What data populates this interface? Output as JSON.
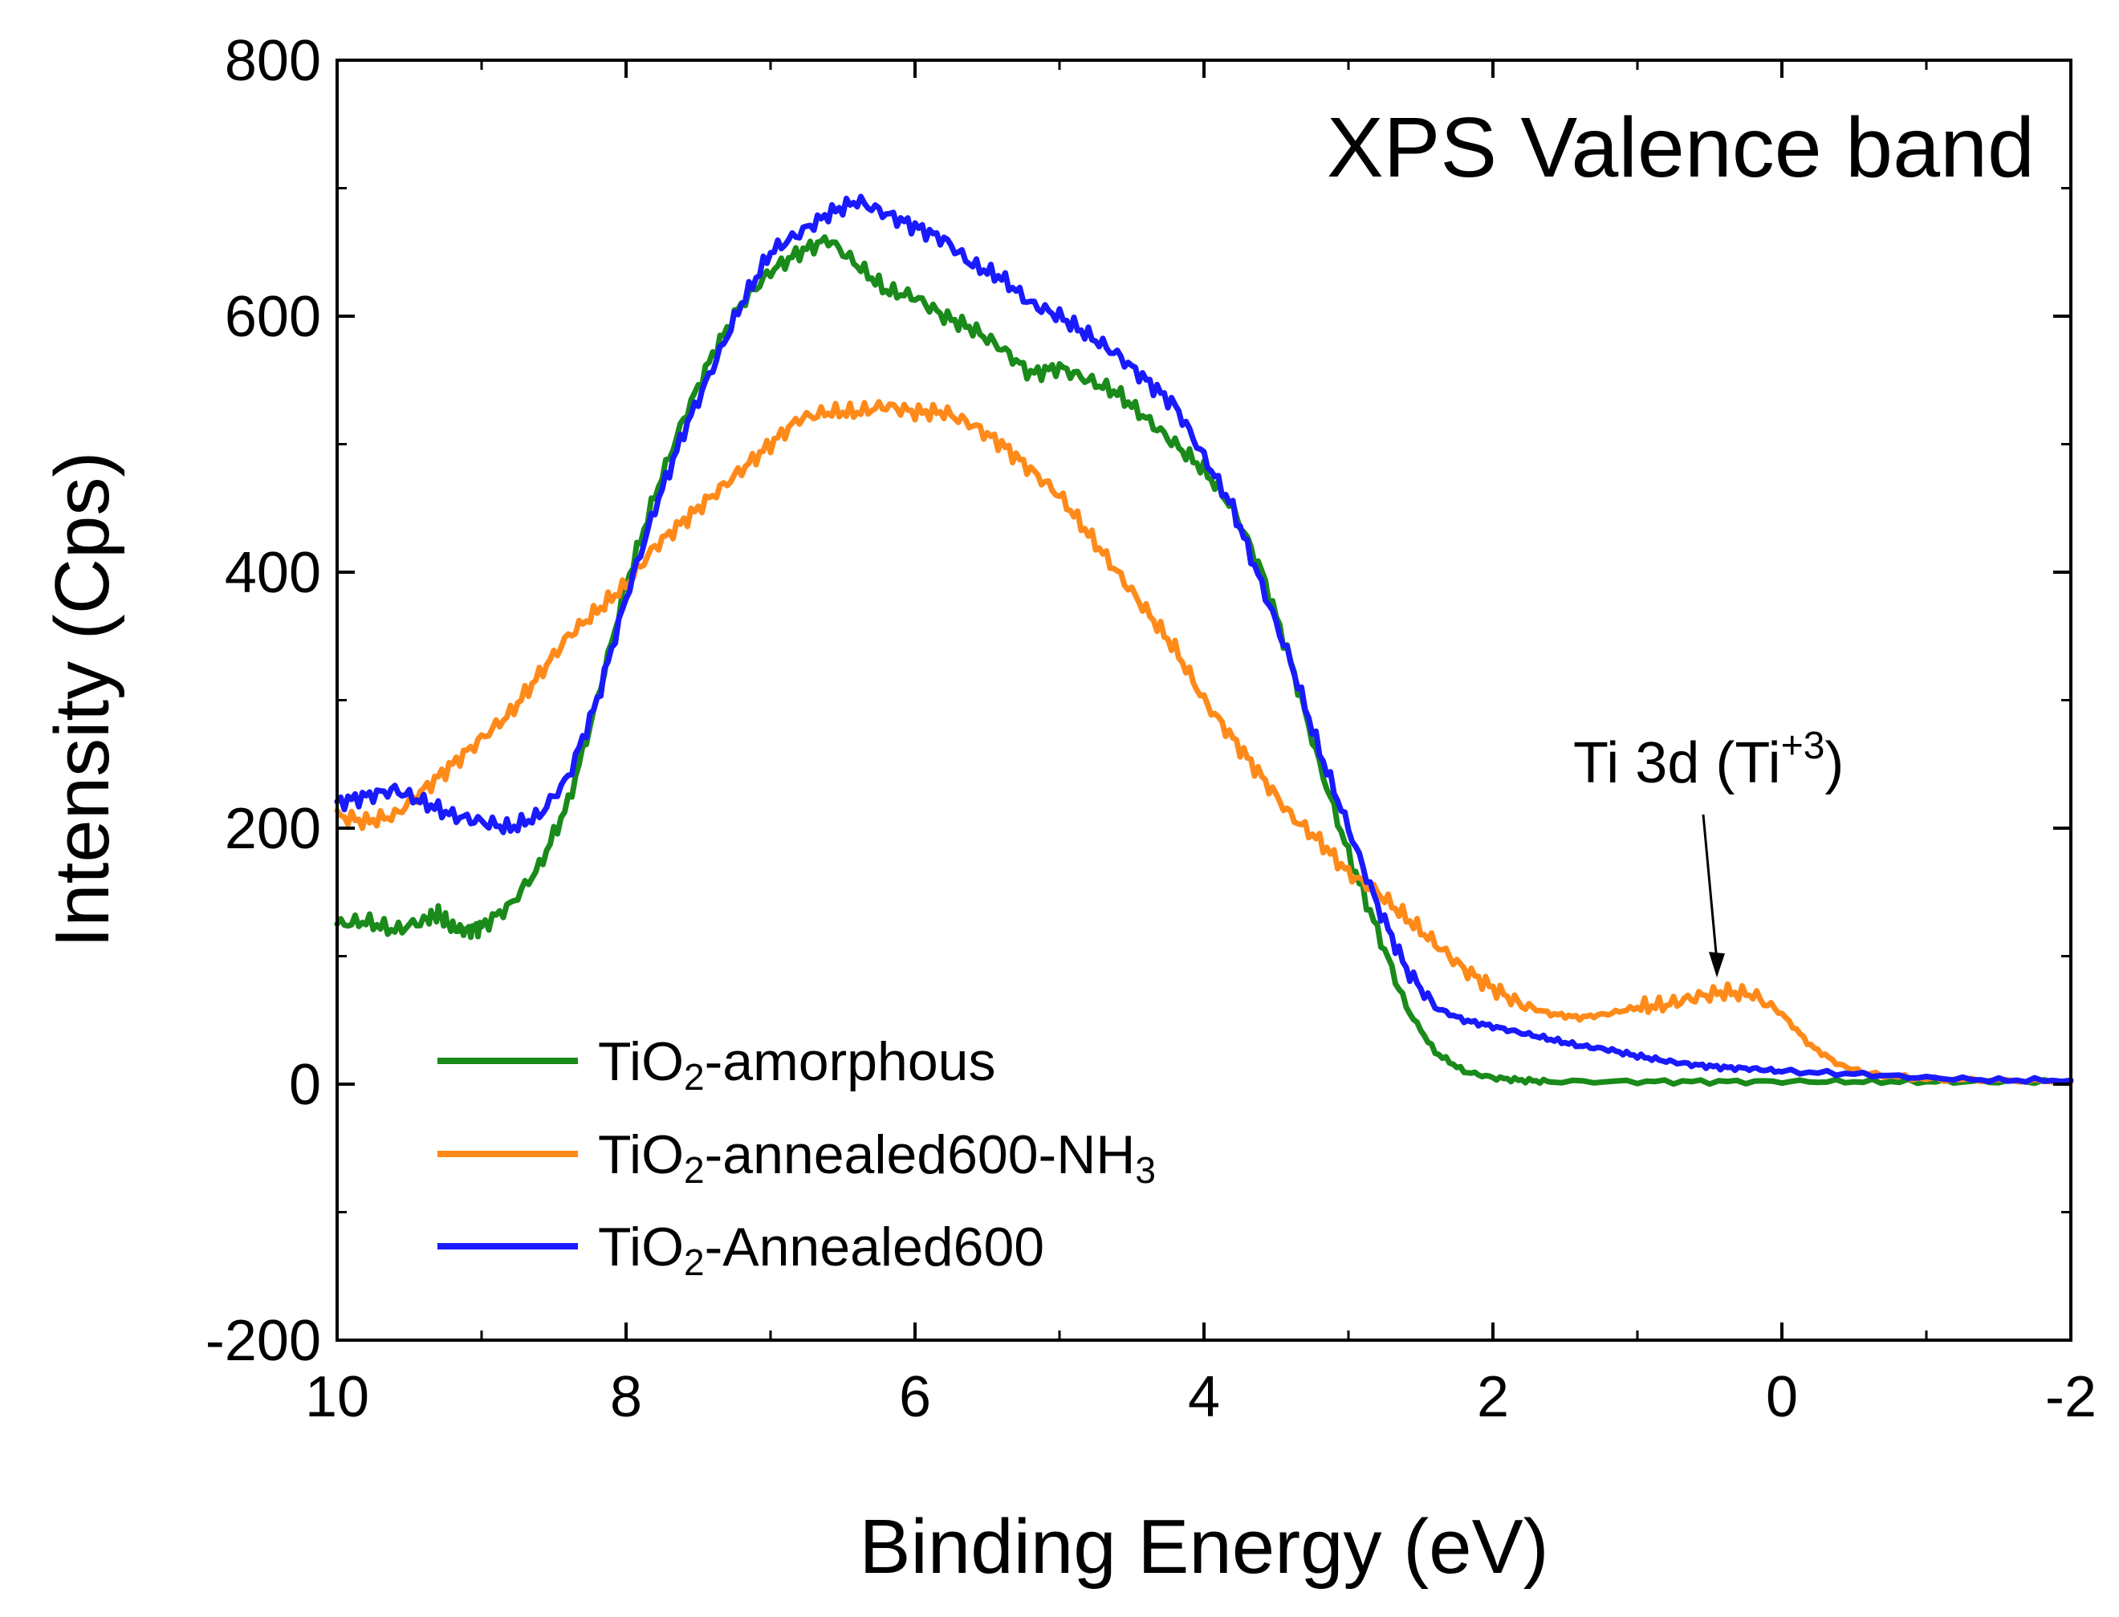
{
  "chart_data": {
    "type": "line",
    "title": "XPS Valence band",
    "xlabel": "Binding Energy (eV)",
    "ylabel": "Intensity (Cps)",
    "xlim": [
      10,
      -2
    ],
    "ylim": [
      -200,
      800
    ],
    "xticks": [
      10,
      8,
      6,
      4,
      2,
      0,
      -2
    ],
    "xtick_labels": [
      "10",
      "8",
      "6",
      "4",
      "2",
      "0",
      "-2"
    ],
    "yticks": [
      -200,
      0,
      200,
      400,
      600,
      800
    ],
    "ytick_labels": [
      "-200",
      "0",
      "200",
      "400",
      "600",
      "800"
    ],
    "legend_position": "bottom-left",
    "series": [
      {
        "name": "TiO2-amorphous",
        "label_main": "TiO",
        "label_sub": "2",
        "label_rest": "-amorphous",
        "color": "#1a8a1a",
        "x": [
          10,
          9.8,
          9.6,
          9.4,
          9.3,
          9.2,
          9.1,
          9.0,
          8.8,
          8.6,
          8.4,
          8.2,
          8.0,
          7.8,
          7.6,
          7.4,
          7.2,
          7.0,
          6.8,
          6.6,
          6.4,
          6.2,
          6.0,
          5.8,
          5.6,
          5.4,
          5.2,
          5.0,
          4.8,
          4.6,
          4.4,
          4.2,
          4.0,
          3.8,
          3.6,
          3.4,
          3.2,
          3.0,
          2.8,
          2.6,
          2.4,
          2.2,
          2.0,
          1.8,
          1.6,
          1.0,
          0.5,
          0,
          -0.5,
          -1.0,
          -1.5,
          -2.0
        ],
        "y": [
          125,
          127,
          120,
          128,
          133,
          122,
          120,
          123,
          140,
          170,
          220,
          300,
          390,
          460,
          520,
          570,
          610,
          635,
          650,
          660,
          640,
          620,
          615,
          600,
          590,
          575,
          555,
          560,
          550,
          540,
          520,
          500,
          480,
          450,
          400,
          330,
          250,
          180,
          120,
          60,
          25,
          10,
          5,
          3,
          2,
          2,
          2,
          2,
          2,
          2,
          2,
          2
        ]
      },
      {
        "name": "TiO2-annealed600-NH3",
        "label_main": "TiO",
        "label_sub": "2",
        "label_rest": "-annealed600-NH",
        "label_sub2": "3",
        "color": "#ff8a1a",
        "x": [
          10,
          9.8,
          9.6,
          9.4,
          9.2,
          9.0,
          8.8,
          8.6,
          8.4,
          8.2,
          8.0,
          7.8,
          7.6,
          7.4,
          7.2,
          7.0,
          6.8,
          6.6,
          6.4,
          6.2,
          6.0,
          5.8,
          5.6,
          5.4,
          5.2,
          5.0,
          4.8,
          4.6,
          4.4,
          4.2,
          4.0,
          3.8,
          3.6,
          3.4,
          3.2,
          3.0,
          2.8,
          2.6,
          2.4,
          2.2,
          2.0,
          1.8,
          1.6,
          1.4,
          1.2,
          1.0,
          0.8,
          0.6,
          0.4,
          0.2,
          0.0,
          -0.2,
          -0.4,
          -0.6,
          -1.0,
          -1.5,
          -2.0
        ],
        "y": [
          210,
          205,
          210,
          230,
          250,
          270,
          290,
          320,
          350,
          370,
          390,
          420,
          440,
          460,
          480,
          500,
          520,
          525,
          525,
          530,
          525,
          525,
          515,
          500,
          480,
          460,
          430,
          400,
          370,
          340,
          300,
          270,
          240,
          210,
          190,
          165,
          150,
          130,
          110,
          90,
          75,
          62,
          55,
          52,
          55,
          60,
          62,
          68,
          72,
          70,
          55,
          30,
          15,
          8,
          4,
          3,
          2
        ]
      },
      {
        "name": "TiO2-Annealed600",
        "label_main": "TiO",
        "label_sub": "2",
        "label_rest": "-Annealed600",
        "color": "#1a1aff",
        "x": [
          10,
          9.8,
          9.6,
          9.4,
          9.2,
          9.0,
          8.8,
          8.6,
          8.4,
          8.2,
          8.0,
          7.8,
          7.6,
          7.4,
          7.2,
          7.0,
          6.8,
          6.6,
          6.4,
          6.2,
          6.0,
          5.8,
          5.6,
          5.4,
          5.2,
          5.0,
          4.8,
          4.6,
          4.4,
          4.2,
          4.0,
          3.8,
          3.6,
          3.4,
          3.2,
          3.0,
          2.8,
          2.6,
          2.4,
          2.2,
          2.0,
          1.8,
          1.6,
          1.4,
          1.2,
          1.0,
          0.8,
          0.6,
          0.4,
          0.2,
          0.0,
          -0.5,
          -1.0,
          -1.5,
          -2.0
        ],
        "y": [
          220,
          225,
          230,
          220,
          210,
          205,
          200,
          210,
          240,
          300,
          380,
          450,
          510,
          560,
          610,
          650,
          665,
          680,
          690,
          680,
          670,
          660,
          640,
          630,
          610,
          600,
          585,
          570,
          550,
          530,
          490,
          450,
          390,
          330,
          260,
          200,
          140,
          90,
          60,
          50,
          45,
          40,
          35,
          30,
          27,
          22,
          18,
          15,
          13,
          12,
          10,
          8,
          5,
          3,
          3
        ]
      }
    ],
    "annotations": [
      {
        "text": "Ti 3d (Ti",
        "superscript": "+3",
        "suffix": ")",
        "target_x": 0.45,
        "target_y": 72
      }
    ]
  }
}
